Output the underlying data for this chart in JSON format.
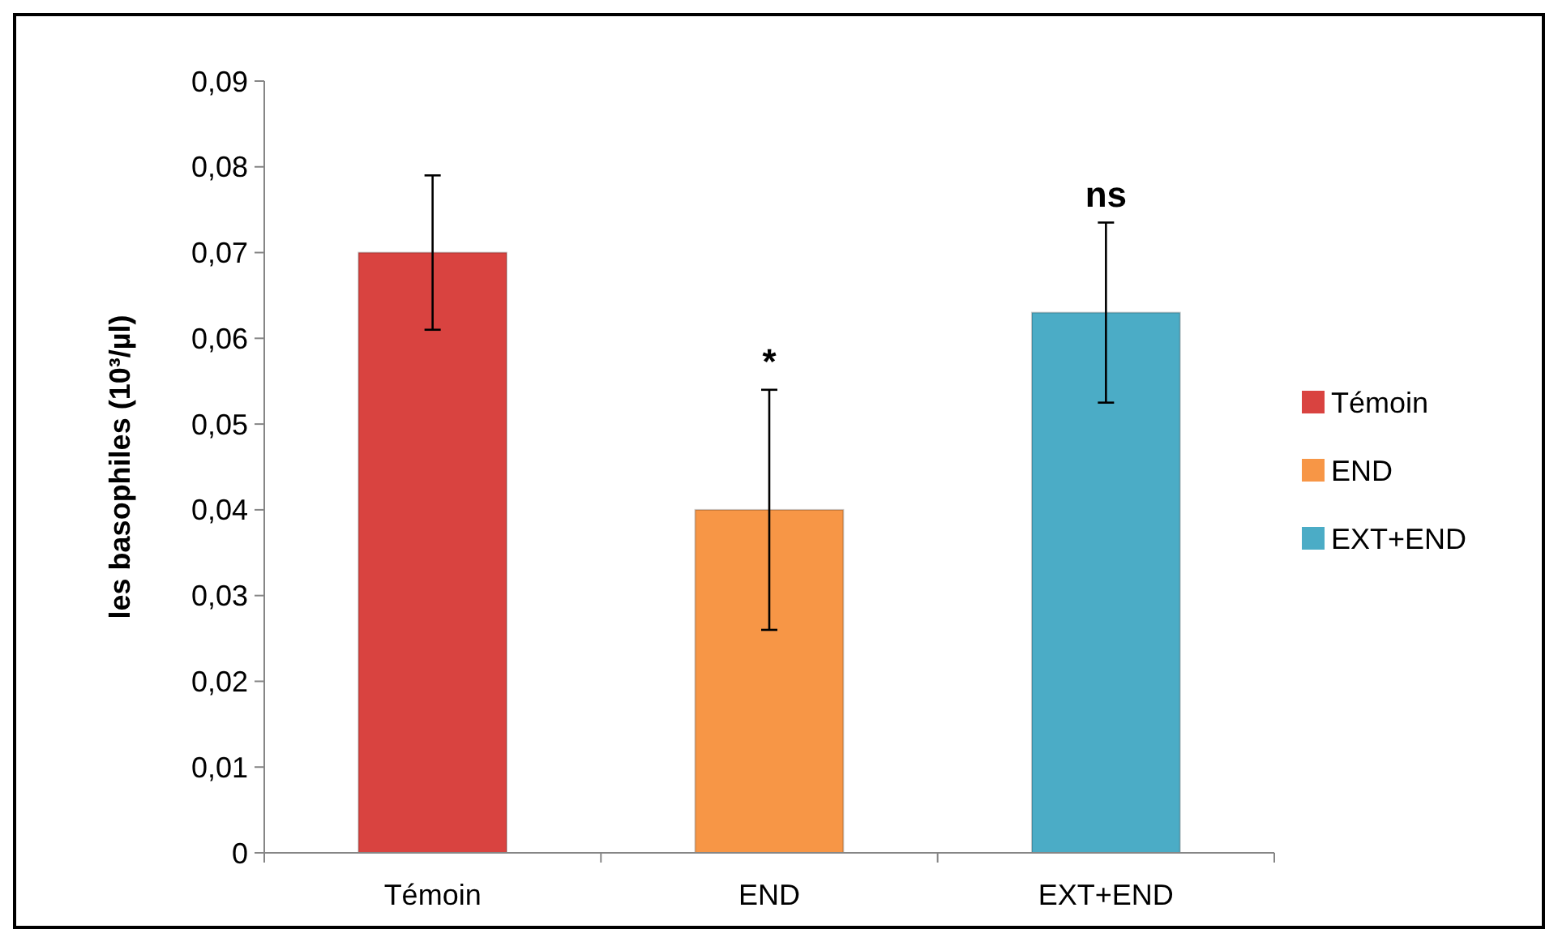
{
  "chart_data": {
    "type": "bar",
    "ylabel": "les basophiles (10³/µl)",
    "categories": [
      "Témoin",
      "END",
      "EXT+END"
    ],
    "stacked": true,
    "series": [
      {
        "name": "Témoin",
        "color": "#d94340",
        "values": [
          0.07,
          null,
          null
        ],
        "errors": [
          0.009,
          null,
          null
        ]
      },
      {
        "name": "END",
        "color": "#f79646",
        "values": [
          null,
          0.04,
          null
        ],
        "errors": [
          null,
          0.014,
          null
        ]
      },
      {
        "name": "EXT+END",
        "color": "#4bacc6",
        "values": [
          null,
          null,
          0.063
        ],
        "errors": [
          null,
          null,
          0.0105
        ]
      }
    ],
    "ylim": [
      0,
      0.09
    ],
    "yticks": [
      {
        "value": 0,
        "label": "0"
      },
      {
        "value": 0.01,
        "label": "0,01"
      },
      {
        "value": 0.02,
        "label": "0,02"
      },
      {
        "value": 0.03,
        "label": "0,03"
      },
      {
        "value": 0.04,
        "label": "0,04"
      },
      {
        "value": 0.05,
        "label": "0,05"
      },
      {
        "value": 0.06,
        "label": "0,06"
      },
      {
        "value": 0.07,
        "label": "0,07"
      },
      {
        "value": 0.08,
        "label": "0,08"
      },
      {
        "value": 0.09,
        "label": "0,09"
      }
    ],
    "annotations": [
      {
        "text": "*",
        "x": "END",
        "y": 0.054
      },
      {
        "text": "ns",
        "x": "EXT+END",
        "y": 0.0735
      }
    ],
    "legend": "right"
  }
}
